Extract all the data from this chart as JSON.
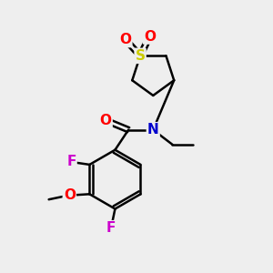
{
  "background_color": "#eeeeee",
  "atom_colors": {
    "C": "#000000",
    "N": "#0000cc",
    "O": "#ff0000",
    "S": "#cccc00",
    "F": "#cc00cc"
  },
  "bond_lw": 1.8,
  "fig_size": [
    3.0,
    3.0
  ],
  "dpi": 100
}
